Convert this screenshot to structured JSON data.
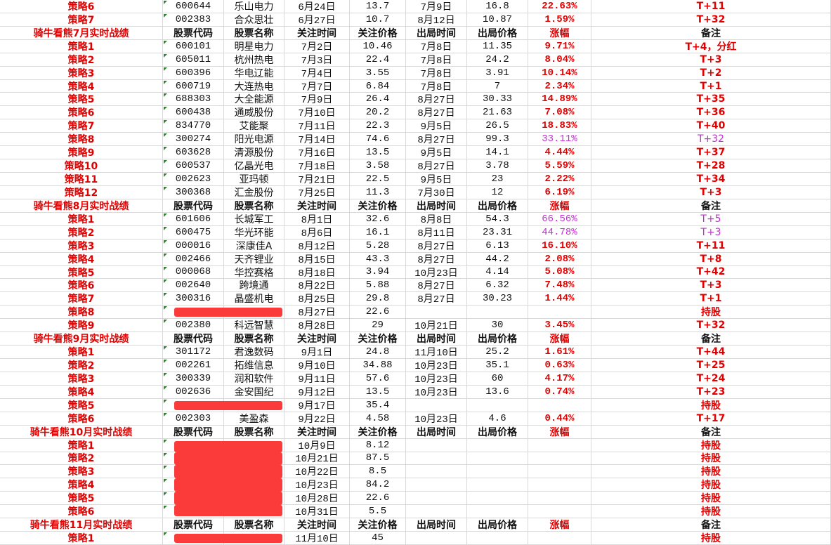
{
  "rows": [
    {
      "cells": [
        "策略6",
        "600644",
        "乐山电力",
        "6月24日",
        "13.7",
        "7月9日",
        "16.8",
        "22.63%",
        "T+11"
      ]
    },
    {
      "cells": [
        "策略7",
        "002383",
        "合众思壮",
        "6月27日",
        "10.7",
        "8月12日",
        "10.87",
        "1.59%",
        "T+32"
      ]
    },
    {
      "cells": [
        "骑牛看熊7月实时战绩",
        "股票代码",
        "股票名称",
        "关注时间",
        "关注价格",
        "出局时间",
        "出局价格",
        "涨幅",
        "备注"
      ],
      "header": true
    },
    {
      "cells": [
        "策略1",
        "600101",
        "明星电力",
        "7月2日",
        "10.46",
        "7月8日",
        "11.35",
        "9.71%",
        "T+4，分红"
      ]
    },
    {
      "cells": [
        "策略2",
        "605011",
        "杭州热电",
        "7月3日",
        "22.4",
        "7月8日",
        "24.2",
        "8.04%",
        "T+3"
      ]
    },
    {
      "cells": [
        "策略3",
        "600396",
        "华电辽能",
        "7月4日",
        "3.55",
        "7月8日",
        "3.91",
        "10.14%",
        "T+2"
      ]
    },
    {
      "cells": [
        "策略4",
        "600719",
        "大连热电",
        "7月7日",
        "6.84",
        "7月8日",
        "7",
        "2.34%",
        "T+1"
      ]
    },
    {
      "cells": [
        "策略5",
        "688303",
        "大全能源",
        "7月9日",
        "26.4",
        "8月27日",
        "30.33",
        "14.89%",
        "T+35"
      ]
    },
    {
      "cells": [
        "策略6",
        "600438",
        "通威股份",
        "7月10日",
        "20.2",
        "8月27日",
        "21.63",
        "7.08%",
        "T+36"
      ]
    },
    {
      "cells": [
        "策略7",
        "834770",
        "艾能聚",
        "7月11日",
        "22.3",
        "9月5日",
        "26.5",
        "18.83%",
        "T+40"
      ]
    },
    {
      "cells": [
        "策略8",
        "300274",
        "阳光电源",
        "7月14日",
        "74.6",
        "8月27日",
        "99.3",
        "33.11%",
        "T+32"
      ],
      "highlight": true
    },
    {
      "cells": [
        "策略9",
        "603628",
        "清源股份",
        "7月16日",
        "13.5",
        "9月5日",
        "14.1",
        "4.44%",
        "T+37"
      ]
    },
    {
      "cells": [
        "策略10",
        "600537",
        "亿晶光电",
        "7月18日",
        "3.58",
        "8月27日",
        "3.78",
        "5.59%",
        "T+28"
      ]
    },
    {
      "cells": [
        "策略11",
        "002623",
        "亚玛顿",
        "7月21日",
        "22.5",
        "9月5日",
        "23",
        "2.22%",
        "T+34"
      ]
    },
    {
      "cells": [
        "策略12",
        "300368",
        "汇金股份",
        "7月25日",
        "11.3",
        "7月30日",
        "12",
        "6.19%",
        "T+3"
      ]
    },
    {
      "cells": [
        "骑牛看熊8月实时战绩",
        "股票代码",
        "股票名称",
        "关注时间",
        "关注价格",
        "出局时间",
        "出局价格",
        "涨幅",
        "备注"
      ],
      "header": true
    },
    {
      "cells": [
        "策略1",
        "601606",
        "长城军工",
        "8月1日",
        "32.6",
        "8月8日",
        "54.3",
        "66.56%",
        "T+5"
      ],
      "highlight": true
    },
    {
      "cells": [
        "策略2",
        "600475",
        "华光环能",
        "8月6日",
        "16.1",
        "8月11日",
        "23.31",
        "44.78%",
        "T+3"
      ],
      "highlight": true
    },
    {
      "cells": [
        "策略3",
        "000016",
        "深康佳A",
        "8月12日",
        "5.28",
        "8月27日",
        "6.13",
        "16.10%",
        "T+11"
      ]
    },
    {
      "cells": [
        "策略4",
        "002466",
        "天齐锂业",
        "8月15日",
        "43.3",
        "8月27日",
        "44.2",
        "2.08%",
        "T+8"
      ]
    },
    {
      "cells": [
        "策略5",
        "000068",
        "华控赛格",
        "8月18日",
        "3.94",
        "10月23日",
        "4.14",
        "5.08%",
        "T+42"
      ]
    },
    {
      "cells": [
        "策略6",
        "002640",
        "跨境通",
        "8月22日",
        "5.88",
        "8月27日",
        "6.32",
        "7.48%",
        "T+3"
      ]
    },
    {
      "cells": [
        "策略7",
        "300316",
        "晶盛机电",
        "8月25日",
        "29.8",
        "8月27日",
        "30.23",
        "1.44%",
        "T+1"
      ]
    },
    {
      "cells": [
        "策略8",
        null,
        null,
        "8月27日",
        "22.6",
        null,
        null,
        null,
        "持股"
      ],
      "redacted": true
    },
    {
      "cells": [
        "策略9",
        "002380",
        "科远智慧",
        "8月28日",
        "29",
        "10月21日",
        "30",
        "3.45%",
        "T+32"
      ]
    },
    {
      "cells": [
        "骑牛看熊9月实时战绩",
        "股票代码",
        "股票名称",
        "关注时间",
        "关注价格",
        "出局时间",
        "出局价格",
        "涨幅",
        "备注"
      ],
      "header": true
    },
    {
      "cells": [
        "策略1",
        "301172",
        "君逸数码",
        "9月1日",
        "24.8",
        "11月10日",
        "25.2",
        "1.61%",
        "T+44"
      ]
    },
    {
      "cells": [
        "策略2",
        "002261",
        "拓维信息",
        "9月10日",
        "34.88",
        "10月23日",
        "35.1",
        "0.63%",
        "T+25"
      ]
    },
    {
      "cells": [
        "策略3",
        "300339",
        "润和软件",
        "9月11日",
        "57.6",
        "10月23日",
        "60",
        "4.17%",
        "T+24"
      ]
    },
    {
      "cells": [
        "策略4",
        "002636",
        "金安国纪",
        "9月12日",
        "13.5",
        "10月23日",
        "13.6",
        "0.74%",
        "T+23"
      ]
    },
    {
      "cells": [
        "策略5",
        null,
        null,
        "9月17日",
        "35.4",
        null,
        null,
        null,
        "持股"
      ],
      "redacted": true
    },
    {
      "cells": [
        "策略6",
        "002303",
        "美盈森",
        "9月22日",
        "4.58",
        "10月23日",
        "4.6",
        "0.44%",
        "T+17"
      ]
    },
    {
      "cells": [
        "骑牛看熊10月实时战绩",
        "股票代码",
        "股票名称",
        "关注时间",
        "关注价格",
        "出局时间",
        "出局价格",
        "涨幅",
        "备注"
      ],
      "header": true
    },
    {
      "cells": [
        "策略1",
        null,
        null,
        "10月9日",
        "8.12",
        null,
        null,
        null,
        "持股"
      ],
      "redacted": true
    },
    {
      "cells": [
        "策略2",
        null,
        null,
        "10月21日",
        "87.5",
        null,
        null,
        null,
        "持股"
      ],
      "redacted": true
    },
    {
      "cells": [
        "策略3",
        null,
        null,
        "10月22日",
        "8.5",
        null,
        null,
        null,
        "持股"
      ],
      "redacted": true
    },
    {
      "cells": [
        "策略4",
        null,
        null,
        "10月23日",
        "84.2",
        null,
        null,
        null,
        "持股"
      ],
      "redacted": true
    },
    {
      "cells": [
        "策略5",
        null,
        null,
        "10月28日",
        "22.6",
        null,
        null,
        null,
        "持股"
      ],
      "redacted": true
    },
    {
      "cells": [
        "策略6",
        null,
        null,
        "10月31日",
        "5.5",
        null,
        null,
        null,
        "持股"
      ],
      "redacted": true
    },
    {
      "cells": [
        "骑牛看熊11月实时战绩",
        "股票代码",
        "股票名称",
        "关注时间",
        "关注价格",
        "出局时间",
        "出局价格",
        "涨幅",
        "备注"
      ],
      "header": true
    },
    {
      "cells": [
        "策略1",
        null,
        null,
        "11月10日",
        "45",
        null,
        null,
        null,
        "持股"
      ],
      "redacted": true
    }
  ]
}
